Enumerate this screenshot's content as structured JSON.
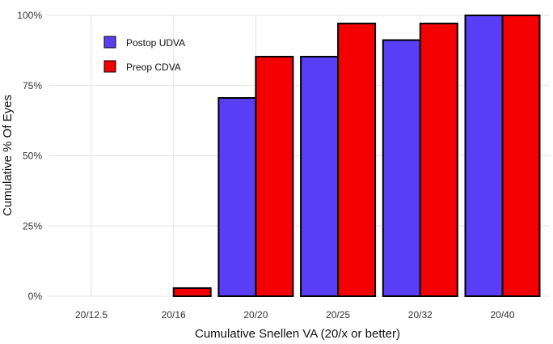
{
  "chart_data": {
    "type": "bar",
    "title": "",
    "xlabel": "Cumulative Snellen VA (20/x or better)",
    "ylabel": "Cumulative % Of Eyes",
    "categories": [
      "20/12.5",
      "20/16",
      "20/20",
      "20/25",
      "20/32",
      "20/40"
    ],
    "series": [
      {
        "name": "Postop UDVA",
        "color": "#5a3ef5",
        "values": [
          0,
          0,
          70.6,
          85.3,
          91.2,
          100
        ]
      },
      {
        "name": "Preop CDVA",
        "color": "#f50000",
        "values": [
          0,
          2.9,
          85.3,
          97.1,
          97.1,
          100
        ]
      }
    ],
    "ylim": [
      0,
      100
    ],
    "yticks": [
      0,
      25,
      50,
      75,
      100
    ],
    "ytick_labels": [
      "0%",
      "25%",
      "50%",
      "75%",
      "100%"
    ],
    "grid": true,
    "legend_position": "top-left"
  }
}
